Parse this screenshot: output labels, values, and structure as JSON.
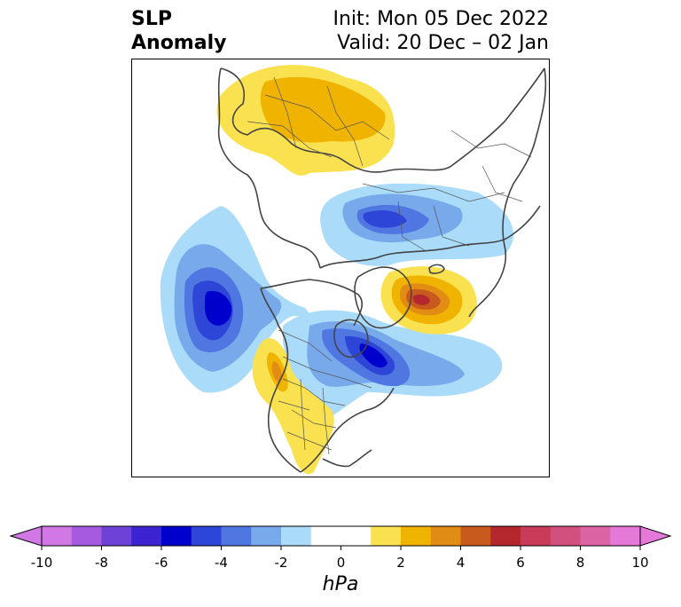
{
  "header": {
    "title_line1": "SLP",
    "title_line2": "Anomaly",
    "init": "Init: Mon 05 Dec 2022",
    "valid": "Valid: 20 Dec – 02 Jan"
  },
  "colorbar": {
    "unit": "hPa",
    "ticks": [
      "-10",
      "-8",
      "-6",
      "-4",
      "-2",
      "0",
      "2",
      "4",
      "6",
      "8",
      "10"
    ],
    "colors": [
      "#d278e6",
      "#a55ae0",
      "#6e41d7",
      "#3c23d2",
      "#0000cd",
      "#2d46d7",
      "#5077e1",
      "#78aaeb",
      "#aadcfa",
      "#ffffff",
      "#ffffff",
      "#fae150",
      "#f0b400",
      "#e18c14",
      "#c85a1e",
      "#b4282d",
      "#c83c5a",
      "#d2507d",
      "#dc64a5",
      "#e678d7"
    ],
    "extend_min_color": "#d278e6",
    "extend_max_color": "#e678d7"
  },
  "map": {
    "projection": "north-polar stereographic",
    "anomaly_centers": [
      {
        "name": "North Pacific low",
        "sign": "negative",
        "peak_hPa": -6
      },
      {
        "name": "Western North America high",
        "sign": "positive",
        "peak_hPa": 2
      },
      {
        "name": "Eastern Canada low",
        "sign": "negative",
        "peak_hPa": -6
      },
      {
        "name": "Greenland high",
        "sign": "positive",
        "peak_hPa": 6
      },
      {
        "name": "Siberia low",
        "sign": "negative",
        "peak_hPa": -6
      },
      {
        "name": "Europe high",
        "sign": "positive",
        "peak_hPa": 2
      }
    ]
  }
}
